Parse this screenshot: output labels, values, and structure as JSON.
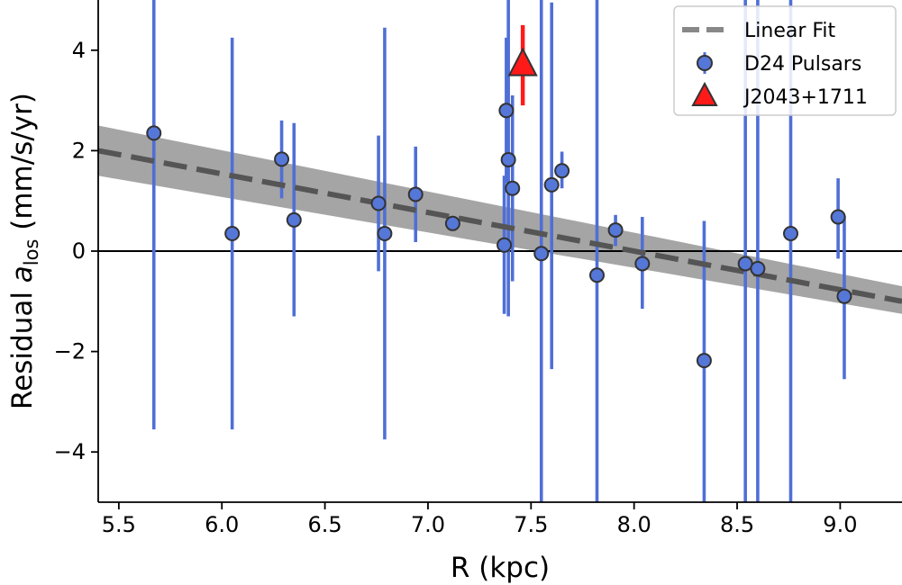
{
  "chart_data": {
    "type": "scatter",
    "xlabel": "R (kpc)",
    "ylabel_main": "Residual ",
    "ylabel_var": "a",
    "ylabel_sub": "los",
    "ylabel_unit": " (mm/s/yr)",
    "xlim": [
      5.4,
      9.3
    ],
    "ylim": [
      -5,
      5
    ],
    "xticks": [
      5.5,
      6.0,
      6.5,
      7.0,
      7.5,
      8.0,
      8.5,
      9.0
    ],
    "yticks": [
      -4,
      -2,
      0,
      2,
      4
    ],
    "xtick_labels": [
      "5.5",
      "6.0",
      "6.5",
      "7.0",
      "7.5",
      "8.0",
      "8.5",
      "9.0"
    ],
    "ytick_labels": [
      "−4",
      "−2",
      "0",
      "2",
      "4"
    ],
    "zero_line": 0,
    "legend": {
      "placement": "top-right",
      "entries": [
        "Linear Fit",
        "D24 Pulsars",
        "J2043+1711"
      ]
    },
    "fit": {
      "name": "Linear Fit",
      "x": [
        5.4,
        9.3
      ],
      "y": [
        2.0,
        -1.0
      ],
      "band_upper": [
        2.5,
        -0.7
      ],
      "band_lower": [
        1.5,
        -1.25
      ],
      "color": "#555555",
      "band_color": "#999999"
    },
    "series": [
      {
        "name": "D24 Pulsars",
        "color": "#5577d8",
        "errcolor": "#4f6fd6",
        "points": [
          {
            "x": 5.67,
            "y": 2.35,
            "lo": -3.55,
            "hi": 5.0
          },
          {
            "x": 6.05,
            "y": 0.35,
            "lo": -3.55,
            "hi": 4.25
          },
          {
            "x": 6.29,
            "y": 1.83,
            "lo": 1.05,
            "hi": 2.6
          },
          {
            "x": 6.35,
            "y": 0.62,
            "lo": -1.3,
            "hi": 2.55
          },
          {
            "x": 6.76,
            "y": 0.95,
            "lo": -0.4,
            "hi": 2.3
          },
          {
            "x": 6.79,
            "y": 0.35,
            "lo": -3.75,
            "hi": 4.45
          },
          {
            "x": 6.94,
            "y": 1.13,
            "lo": 0.18,
            "hi": 2.08
          },
          {
            "x": 7.12,
            "y": 0.55,
            "lo": 0.55,
            "hi": 0.55
          },
          {
            "x": 7.37,
            "y": 0.12,
            "lo": -1.25,
            "hi": 1.5
          },
          {
            "x": 7.38,
            "y": 2.8,
            "lo": 1.35,
            "hi": 4.25
          },
          {
            "x": 7.39,
            "y": 1.82,
            "lo": -1.3,
            "hi": 5.0
          },
          {
            "x": 7.41,
            "y": 1.25,
            "lo": -0.6,
            "hi": 3.1
          },
          {
            "x": 7.55,
            "y": -0.05,
            "lo": -5.0,
            "hi": 5.0
          },
          {
            "x": 7.6,
            "y": 1.32,
            "lo": -2.35,
            "hi": 4.95
          },
          {
            "x": 7.65,
            "y": 1.6,
            "lo": 1.25,
            "hi": 1.98
          },
          {
            "x": 7.82,
            "y": -0.48,
            "lo": -5.0,
            "hi": 5.0
          },
          {
            "x": 7.91,
            "y": 0.42,
            "lo": 0.1,
            "hi": 0.72
          },
          {
            "x": 8.04,
            "y": -0.25,
            "lo": -1.15,
            "hi": 0.68
          },
          {
            "x": 8.34,
            "y": -2.18,
            "lo": -5.0,
            "hi": 0.6
          },
          {
            "x": 8.54,
            "y": -0.25,
            "lo": -5.0,
            "hi": 5.0
          },
          {
            "x": 8.6,
            "y": -0.35,
            "lo": -5.0,
            "hi": 5.0
          },
          {
            "x": 8.76,
            "y": 0.35,
            "lo": -5.0,
            "hi": 5.0
          },
          {
            "x": 8.99,
            "y": 0.68,
            "lo": -0.15,
            "hi": 1.45
          },
          {
            "x": 9.02,
            "y": -0.9,
            "lo": -2.55,
            "hi": 0.7
          }
        ]
      },
      {
        "name": "J2043+1711",
        "marker": "triangle",
        "color": "#ff1a1a",
        "errcolor": "#ff1a1a",
        "points": [
          {
            "x": 7.46,
            "y": 3.68,
            "lo": 2.9,
            "hi": 4.5
          }
        ]
      }
    ]
  }
}
